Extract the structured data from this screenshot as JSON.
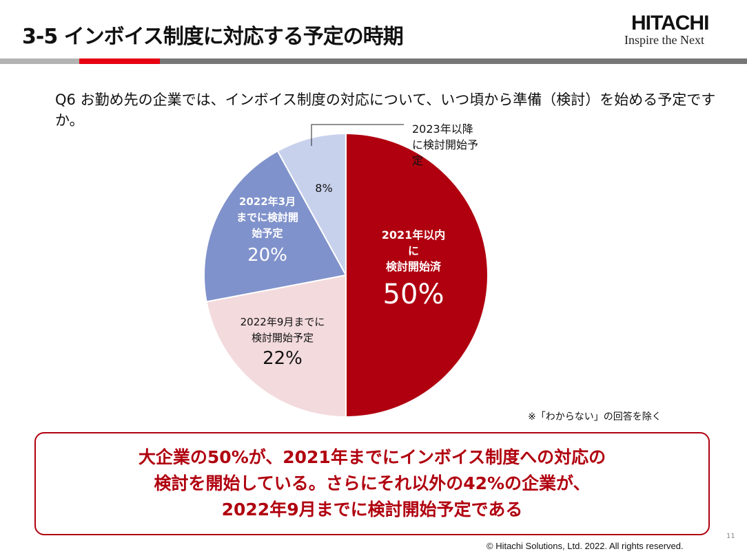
{
  "header": {
    "title": "3-5 インボイス制度に対応する予定の時期",
    "logo_name": "HITACHI",
    "logo_tagline": "Inspire the Next"
  },
  "question": "Q6 お勤め先の企業では、インボイス制度の対応について、いつ頃から準備（検討）を始める予定ですか。",
  "chart_data": {
    "type": "pie",
    "title": "",
    "start": "top",
    "direction": "clockwise",
    "slices": [
      {
        "label": "2021年以内に検討開始済",
        "value": 50,
        "value_label": "50%",
        "color": "#b0000f"
      },
      {
        "label": "2022年9月までに検討開始予定",
        "value": 22,
        "value_label": "22%",
        "color": "#f3dadd"
      },
      {
        "label": "2022年3月までに検討開始予定",
        "value": 20,
        "value_label": "20%",
        "color": "#8092cb"
      },
      {
        "label": "2023年以降に検討開始予定",
        "value": 8,
        "value_label": "8%",
        "color": "#c8d1ec"
      }
    ]
  },
  "labels": {
    "s0": [
      "2021年以内",
      "に",
      "検討開始済"
    ],
    "s1": [
      "2022年9月までに",
      "検討開始予定"
    ],
    "s2": [
      "2022年3月",
      "までに",
      "検討開始予定"
    ],
    "s3": [
      "2023年以降に",
      "検討開始予定"
    ]
  },
  "note": "※「わからない」の回答を除く",
  "conclusion": [
    "大企業の50%が、2021年までにインボイス制度への対応の",
    "検討を開始している。さらにそれ以外の42%の企業が、",
    "2022年9月までに検討開始予定である"
  ],
  "footer": {
    "copyright": "© Hitachi Solutions, Ltd. 2022. All rights reserved.",
    "page": "11"
  }
}
